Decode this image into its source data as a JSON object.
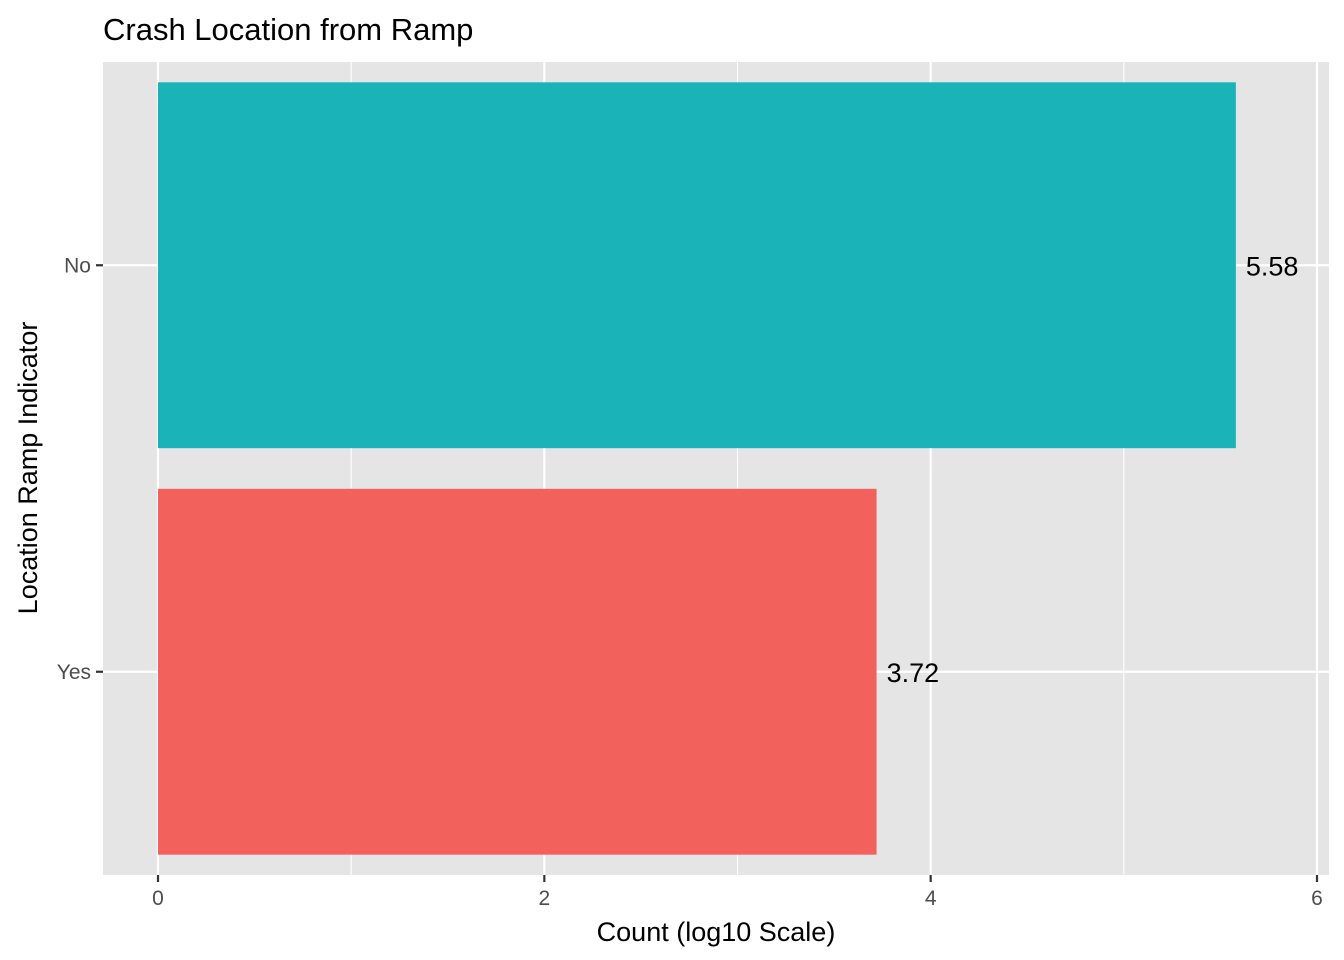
{
  "chart_data": {
    "type": "bar",
    "orientation": "horizontal",
    "title": "Crash Location from Ramp",
    "xlabel": "Count (log10 Scale)",
    "ylabel": "Location Ramp Indicator",
    "categories": [
      "No",
      "Yes"
    ],
    "values": [
      5.58,
      3.72
    ],
    "value_labels": [
      "5.58",
      "3.72"
    ],
    "colors": [
      "#19B3B8",
      "#F3615C"
    ],
    "xlim": [
      0,
      6
    ],
    "xticks": [
      0,
      2,
      4,
      6
    ],
    "xtick_labels": [
      "0",
      "2",
      "4",
      "6"
    ],
    "grid": true,
    "legend": "none",
    "panel_background": "#E5E5E5",
    "grid_color": "#FFFFFF"
  }
}
